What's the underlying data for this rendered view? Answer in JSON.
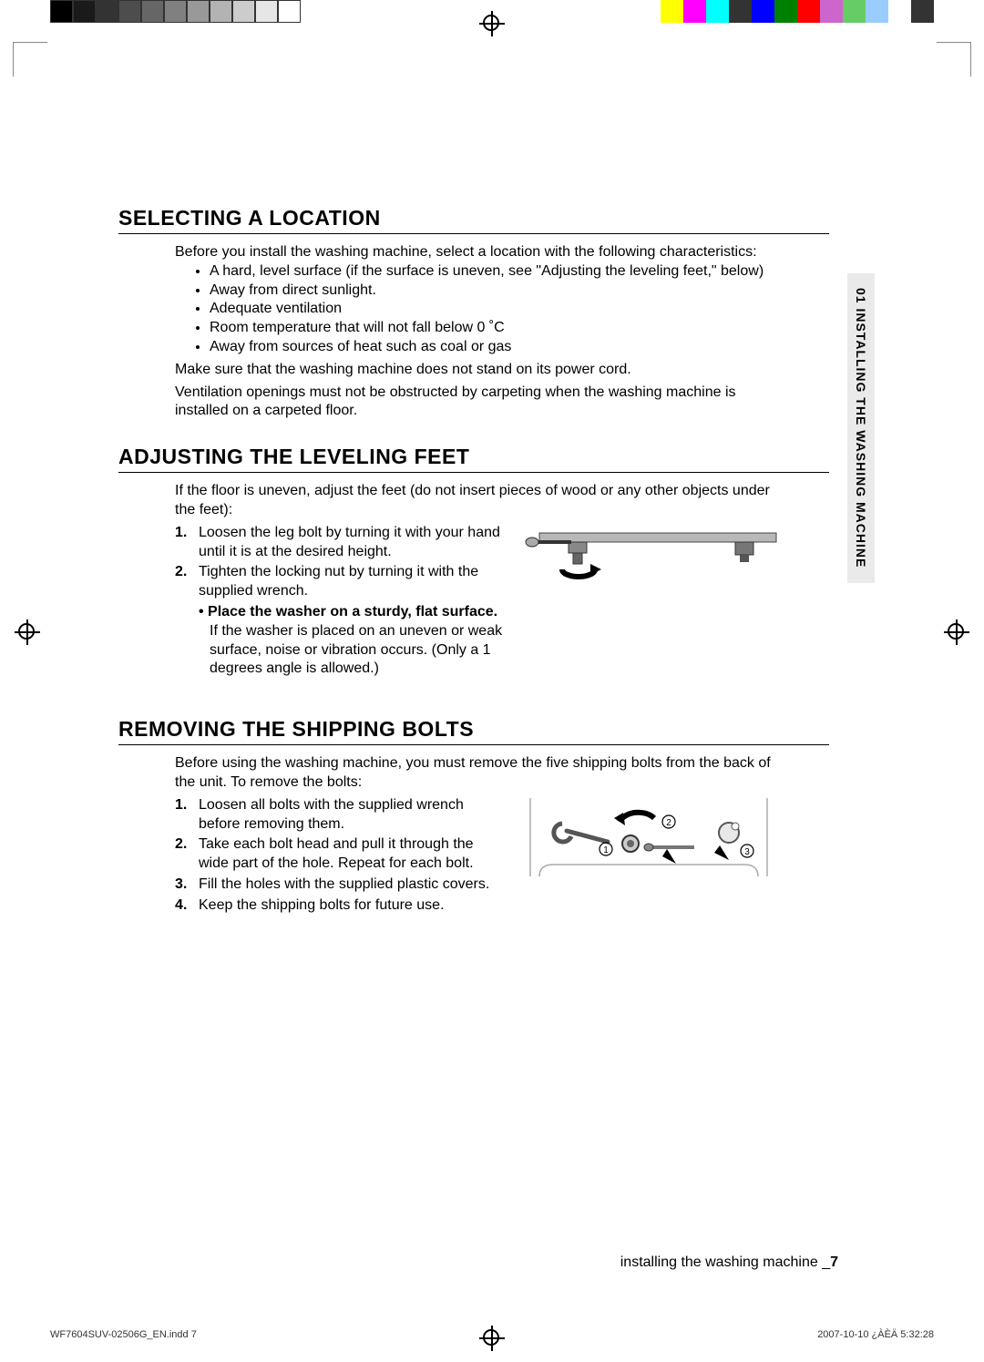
{
  "grayscale_colors": [
    "#000000",
    "#1a1a1a",
    "#333333",
    "#4d4d4d",
    "#666666",
    "#808080",
    "#999999",
    "#b3b3b3",
    "#cccccc",
    "#e6e6e6",
    "#ffffff"
  ],
  "colorbar_colors": [
    "#ffff00",
    "#ff00ff",
    "#00ffff",
    "#333333",
    "#0000ff",
    "#008000",
    "#ff0000",
    "#cc66cc",
    "#66cc66",
    "#99ccff",
    "#ffffff",
    "#333333"
  ],
  "side_tab": "01 INSTALLING THE WASHING MACHINE",
  "section1": {
    "heading": "SELECTING A LOCATION",
    "intro": "Before you install the washing machine, select a location with the following characteristics:",
    "bullets": [
      "A hard, level surface (if the surface is uneven, see \"Adjusting the leveling feet,\" below)",
      "Away from direct sunlight.",
      "Adequate ventilation",
      "Room temperature that will not fall below 0 ˚C",
      "Away from sources of heat such as coal or gas"
    ],
    "para1": "Make sure that the washing machine does not stand on its power cord.",
    "para2": "Ventilation openings must not be obstructed by carpeting when the washing machine is installed on a carpeted floor."
  },
  "section2": {
    "heading": "ADJUSTING THE LEVELING FEET",
    "intro": "If the floor is uneven, adjust the feet (do not insert pieces of wood or any other objects under the feet):",
    "steps": [
      "Loosen the leg bolt by turning it with your hand until it is at the desired height.",
      "Tighten the locking nut by turning it with the supplied wrench."
    ],
    "sub_bold": "Place the washer on a sturdy, flat surface.",
    "sub_rest": " If the washer is placed on an uneven or weak surface, noise or vibration occurs. (Only a 1 degrees angle is allowed.)"
  },
  "section3": {
    "heading": "REMOVING THE SHIPPING BOLTS",
    "intro": "Before using the washing machine, you must remove the five shipping bolts from the back of the unit. To remove the bolts:",
    "steps": [
      "Loosen all bolts with the supplied wrench before removing them.",
      "Take each bolt head and pull it through the wide part of the hole. Repeat for each bolt.",
      "Fill the holes with the supplied plastic covers.",
      "Keep the shipping bolts for future use."
    ]
  },
  "footer": {
    "running_text": "installing the washing machine _",
    "page_number": "7",
    "file": "WF7604SUV-02506G_EN.indd   7",
    "date": "2007-10-10   ¿ÀÈÄ 5:32:28"
  }
}
